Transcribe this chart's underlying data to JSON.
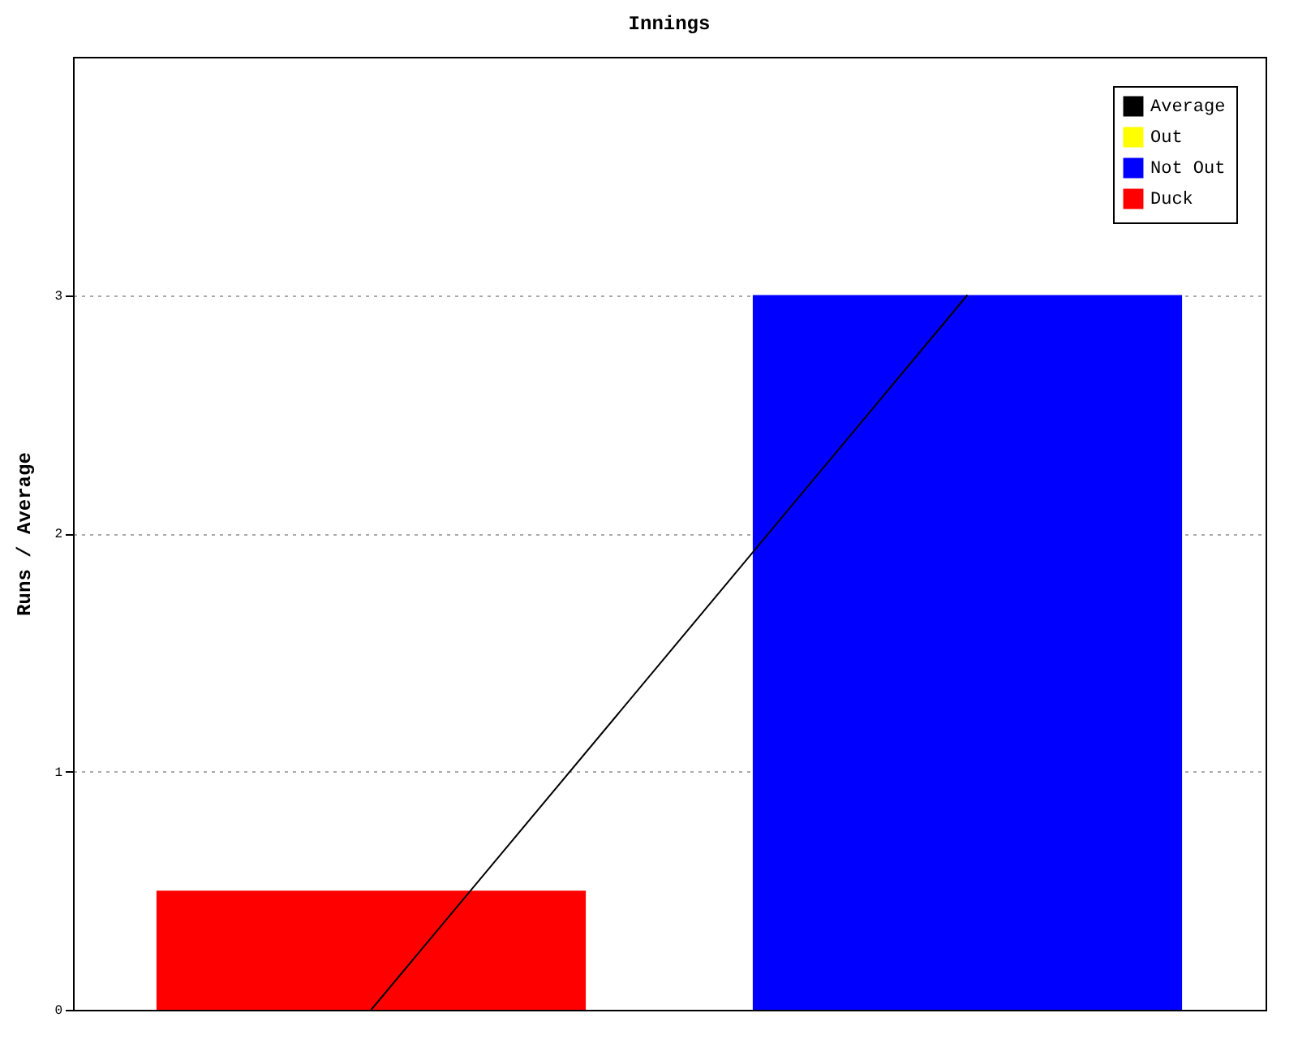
{
  "chart_data": {
    "type": "bar",
    "title": "Innings",
    "ylabel": "Runs / Average",
    "categories": [
      null,
      null
    ],
    "series": [
      {
        "name": "Average",
        "type": "line",
        "color": "#000000",
        "values": [
          0,
          3
        ]
      },
      {
        "name": "Out",
        "color": "#ffff00",
        "values": [
          null,
          null
        ]
      },
      {
        "name": "Not Out",
        "color": "#0000ff",
        "values": [
          null,
          3
        ]
      },
      {
        "name": "Duck",
        "color": "#ff0000",
        "values": [
          0.5,
          null
        ]
      }
    ],
    "ylim": [
      0,
      4
    ],
    "yticks": [
      0,
      1,
      2,
      3
    ],
    "grid": "y",
    "legend": "top right",
    "marker": "none",
    "line_style": "solid"
  }
}
